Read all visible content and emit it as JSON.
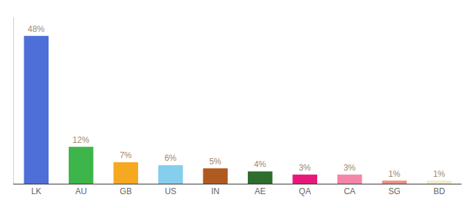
{
  "chart_data": {
    "type": "bar",
    "categories": [
      "LK",
      "AU",
      "GB",
      "US",
      "IN",
      "AE",
      "QA",
      "CA",
      "SG",
      "BD"
    ],
    "values": [
      48,
      12,
      7,
      6,
      5,
      4,
      3,
      3,
      1,
      1
    ],
    "value_labels": [
      "48%",
      "12%",
      "7%",
      "6%",
      "5%",
      "4%",
      "3%",
      "3%",
      "1%",
      "1%"
    ],
    "colors": [
      "#4F6FD8",
      "#3DB54A",
      "#F5A820",
      "#85CEEC",
      "#B05A20",
      "#2D6E2D",
      "#E8187A",
      "#F585A8",
      "#F09080",
      "#F0EBC8"
    ],
    "data_labels": true,
    "ylim": [
      0,
      54
    ],
    "tick_labels": "x",
    "grid": false
  }
}
